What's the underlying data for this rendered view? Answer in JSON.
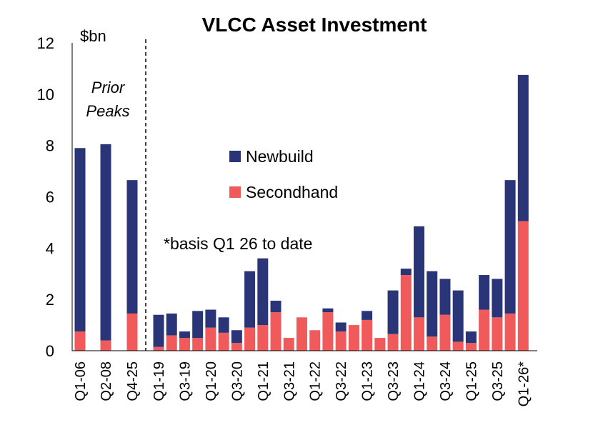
{
  "chart_data": {
    "type": "bar",
    "stacked": true,
    "title": "VLCC Asset Investment",
    "unit_label": "$bn",
    "ylim": [
      0,
      12
    ],
    "yticks": [
      0,
      2,
      4,
      6,
      8,
      10,
      12
    ],
    "prior_peaks_label_line1": "Prior",
    "prior_peaks_label_line2": "Peaks",
    "note": "*basis Q1 26 to date",
    "legend_position": "upper-middle",
    "categories": [
      "Q1-06",
      "Q2-08",
      "Q4-25",
      "Q1-19",
      "Q2-19",
      "Q3-19",
      "Q4-19",
      "Q1-20",
      "Q2-20",
      "Q3-20",
      "Q4-20",
      "Q1-21",
      "Q2-21",
      "Q3-21",
      "Q4-21",
      "Q1-22",
      "Q2-22",
      "Q3-22",
      "Q4-22",
      "Q1-23",
      "Q2-23",
      "Q3-23",
      "Q4-23",
      "Q1-24",
      "Q2-24",
      "Q3-24",
      "Q4-24",
      "Q1-25",
      "Q2-25",
      "Q3-25",
      "Q4-25",
      "Q1-26*"
    ],
    "x_tick_labels": [
      "Q1-06",
      "Q2-08",
      "Q4-25",
      "Q1-19",
      "",
      "Q3-19",
      "",
      "Q1-20",
      "",
      "Q3-20",
      "",
      "Q1-21",
      "",
      "Q3-21",
      "",
      "Q1-22",
      "",
      "Q3-22",
      "",
      "Q1-23",
      "",
      "Q3-23",
      "",
      "Q1-24",
      "",
      "Q3-24",
      "",
      "Q1-25",
      "",
      "Q3-25",
      "",
      "Q1-26*"
    ],
    "series": [
      {
        "name": "Secondhand",
        "color": "#f15a5a",
        "values": [
          0.75,
          0.4,
          1.45,
          0.15,
          0.6,
          0.5,
          0.5,
          0.9,
          0.7,
          0.3,
          0.9,
          1.0,
          1.5,
          0.5,
          1.3,
          0.8,
          1.5,
          0.75,
          1.0,
          1.2,
          0.5,
          0.65,
          2.95,
          1.3,
          0.55,
          1.4,
          0.35,
          0.3,
          1.6,
          1.3,
          1.45,
          5.05
        ]
      },
      {
        "name": "Newbuild",
        "color": "#2a3578",
        "values": [
          7.15,
          7.65,
          5.2,
          1.25,
          0.85,
          0.25,
          1.05,
          0.7,
          0.6,
          0.5,
          2.2,
          2.6,
          0.45,
          0.0,
          0.0,
          0.0,
          0.15,
          0.35,
          0.0,
          0.35,
          0.0,
          1.7,
          0.25,
          3.55,
          2.55,
          1.4,
          2.0,
          0.45,
          1.35,
          1.5,
          5.2,
          5.7
        ]
      }
    ]
  }
}
